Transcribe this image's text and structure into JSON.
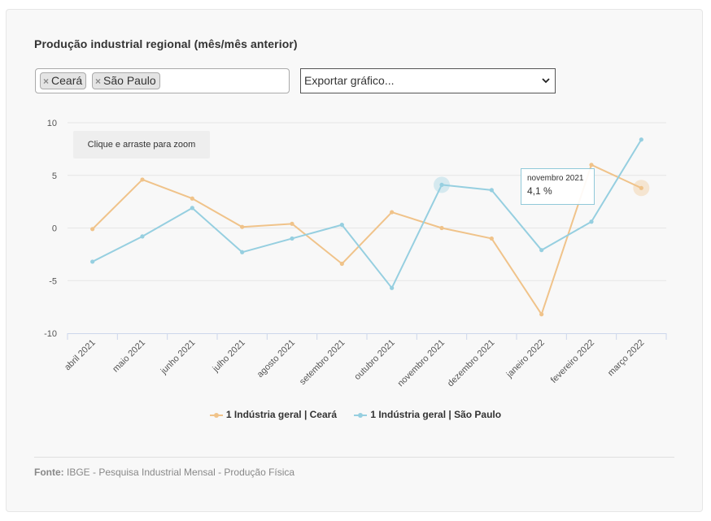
{
  "title": "Produção industrial regional (mês/mês anterior)",
  "filters": {
    "tags": [
      {
        "label": "Ceará"
      },
      {
        "label": "São Paulo"
      }
    ],
    "remove_symbol": "×",
    "export_label": "Exportar gráfico..."
  },
  "zoom_hint": "Clique e arraste para zoom",
  "tooltip": {
    "title": "novembro 2021",
    "value": "4,1 %"
  },
  "colors": {
    "ceara": "#f0c38a",
    "saopaulo": "#96cfe0",
    "grid": "#e6e6e6"
  },
  "chart_data": {
    "type": "line",
    "categories": [
      "abril 2021",
      "maio 2021",
      "junho 2021",
      "julho 2021",
      "agosto 2021",
      "setembro 2021",
      "outubro 2021",
      "novembro 2021",
      "dezembro 2021",
      "janeiro 2022",
      "fevereiro 2022",
      "março 2022"
    ],
    "series": [
      {
        "name": "1 Indústria geral | Ceará",
        "values": [
          -0.1,
          4.6,
          2.8,
          0.1,
          0.4,
          -3.4,
          1.5,
          0.0,
          -1.0,
          -8.2,
          6.0,
          3.8
        ]
      },
      {
        "name": "1 Indústria geral | São Paulo",
        "values": [
          -3.2,
          -0.8,
          1.9,
          -2.3,
          -1.0,
          0.3,
          -5.7,
          4.1,
          3.6,
          -2.1,
          0.6,
          8.4
        ]
      }
    ],
    "ylim": [
      -10,
      10
    ],
    "yticks": [
      "10",
      "5",
      "0",
      "-5",
      "-10"
    ],
    "grid": true,
    "legend": "bottom"
  },
  "source": {
    "label": "Fonte:",
    "text": " IBGE - Pesquisa Industrial Mensal - Produção Física"
  }
}
